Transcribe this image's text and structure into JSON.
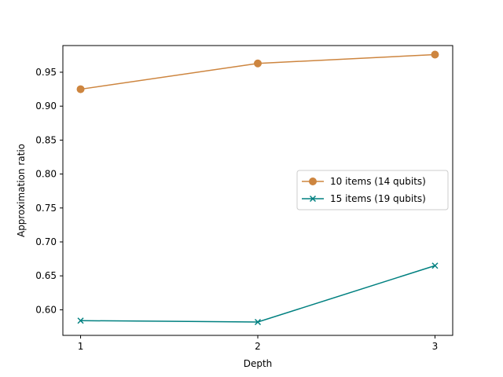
{
  "chart_data": {
    "type": "line",
    "title": "",
    "xlabel": "Depth",
    "ylabel": "Approximation ratio",
    "x": [
      1,
      2,
      3
    ],
    "xlim": [
      0.9,
      3.1
    ],
    "ylim": [
      0.5623,
      0.9893
    ],
    "xticks": [
      1,
      2,
      3
    ],
    "yticks": [
      0.6,
      0.65,
      0.7,
      0.75,
      0.8,
      0.85,
      0.9,
      0.95
    ],
    "ytick_labels": [
      "0.60",
      "0.65",
      "0.70",
      "0.75",
      "0.80",
      "0.85",
      "0.90",
      "0.95"
    ],
    "grid": false,
    "legend_position": "center-right",
    "series": [
      {
        "name": "10 items (14 qubits)",
        "values": [
          0.925,
          0.963,
          0.976
        ],
        "color": "#cd853f",
        "marker": "circle"
      },
      {
        "name": "15 items (19 qubits)",
        "values": [
          0.584,
          0.582,
          0.665
        ],
        "color": "#008080",
        "marker": "x"
      }
    ]
  }
}
